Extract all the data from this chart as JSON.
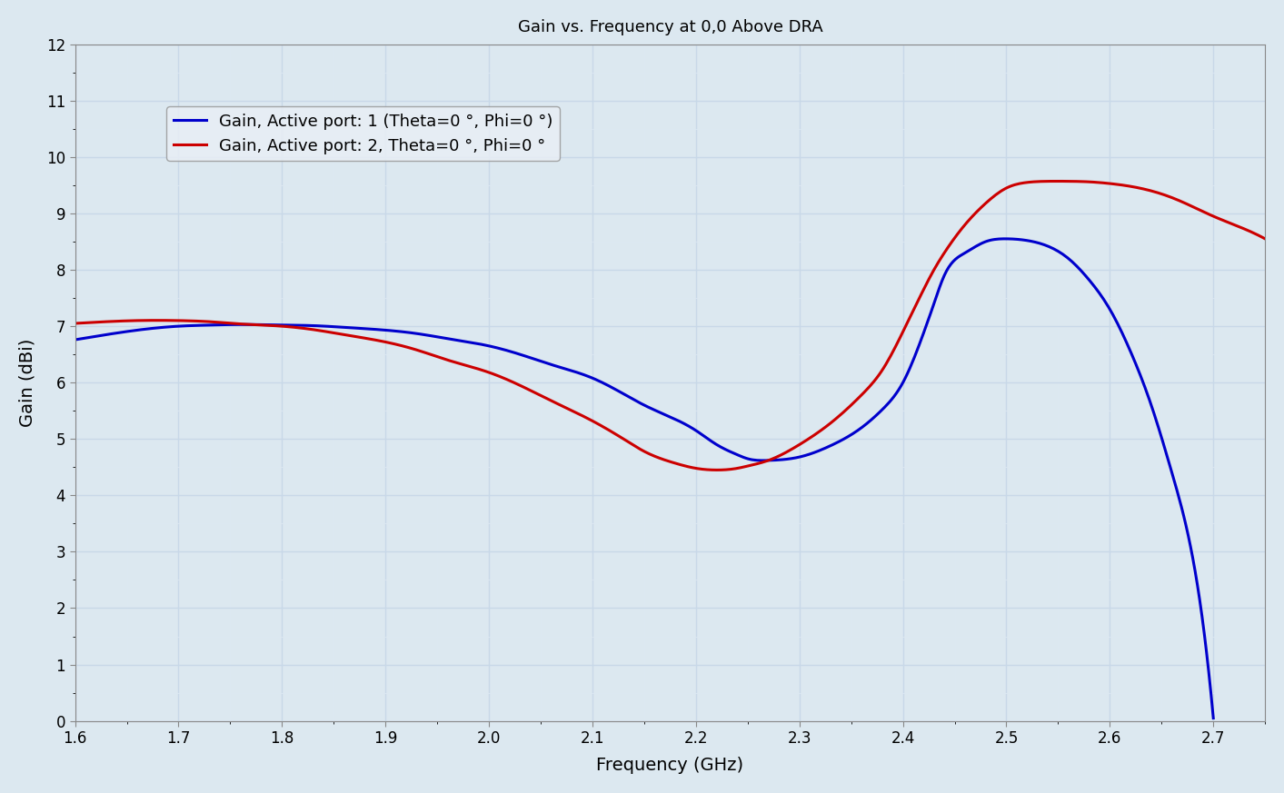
{
  "title": "Gain vs. Frequency at 0,0 Above DRA",
  "xlabel": "Frequency (GHz)",
  "ylabel": "Gain (dBi)",
  "xlim": [
    1.6,
    2.75
  ],
  "ylim": [
    0,
    12
  ],
  "yticks": [
    0,
    1,
    2,
    3,
    4,
    5,
    6,
    7,
    8,
    9,
    10,
    11,
    12
  ],
  "xticks": [
    1.6,
    1.7,
    1.8,
    1.9,
    2.0,
    2.1,
    2.2,
    2.3,
    2.4,
    2.5,
    2.6,
    2.7
  ],
  "legend1": "Gain, Active port: 1 (Theta=0 °, Phi=0 °)",
  "legend2": "Gain, Active port: 2, Theta=0 °, Phi=0 °",
  "color1": "#0000cc",
  "color2": "#cc0000",
  "background_color": "#dce8f0",
  "grid_major_color": "#c8d8e8",
  "grid_minor_color": "#dde8f2",
  "linewidth": 2.2,
  "port1_x": [
    1.6,
    1.63,
    1.66,
    1.7,
    1.73,
    1.76,
    1.8,
    1.83,
    1.86,
    1.9,
    1.93,
    1.96,
    2.0,
    2.03,
    2.06,
    2.1,
    2.13,
    2.15,
    2.18,
    2.2,
    2.22,
    2.24,
    2.25,
    2.27,
    2.3,
    2.33,
    2.36,
    2.38,
    2.4,
    2.42,
    2.43,
    2.44,
    2.46,
    2.48,
    2.5,
    2.52,
    2.54,
    2.56,
    2.58,
    2.6,
    2.62,
    2.64,
    2.66,
    2.68,
    2.7
  ],
  "port1_y": [
    6.76,
    6.85,
    6.93,
    7.0,
    7.02,
    7.03,
    7.02,
    7.01,
    6.98,
    6.93,
    6.87,
    6.78,
    6.65,
    6.5,
    6.32,
    6.08,
    5.8,
    5.6,
    5.35,
    5.15,
    4.9,
    4.72,
    4.65,
    4.62,
    4.68,
    4.88,
    5.2,
    5.52,
    6.0,
    6.88,
    7.4,
    7.9,
    8.3,
    8.5,
    8.55,
    8.52,
    8.42,
    8.2,
    7.82,
    7.3,
    6.55,
    5.6,
    4.4,
    2.9,
    0.05
  ],
  "port2_x": [
    1.6,
    1.63,
    1.66,
    1.7,
    1.73,
    1.76,
    1.8,
    1.83,
    1.86,
    1.9,
    1.93,
    1.96,
    2.0,
    2.03,
    2.06,
    2.1,
    2.13,
    2.15,
    2.18,
    2.2,
    2.22,
    2.24,
    2.25,
    2.27,
    2.3,
    2.33,
    2.36,
    2.38,
    2.4,
    2.42,
    2.43,
    2.44,
    2.46,
    2.48,
    2.5,
    2.52,
    2.54,
    2.56,
    2.58,
    2.6,
    2.62,
    2.64,
    2.66,
    2.68,
    2.7,
    2.72,
    2.75
  ],
  "port2_y": [
    7.05,
    7.08,
    7.1,
    7.1,
    7.08,
    7.04,
    7.0,
    6.94,
    6.85,
    6.72,
    6.58,
    6.4,
    6.18,
    5.95,
    5.68,
    5.32,
    5.0,
    4.78,
    4.57,
    4.48,
    4.45,
    4.48,
    4.52,
    4.62,
    4.9,
    5.28,
    5.78,
    6.22,
    6.9,
    7.65,
    8.0,
    8.3,
    8.8,
    9.18,
    9.45,
    9.55,
    9.57,
    9.57,
    9.56,
    9.53,
    9.48,
    9.4,
    9.28,
    9.12,
    8.95,
    8.8,
    8.55
  ]
}
